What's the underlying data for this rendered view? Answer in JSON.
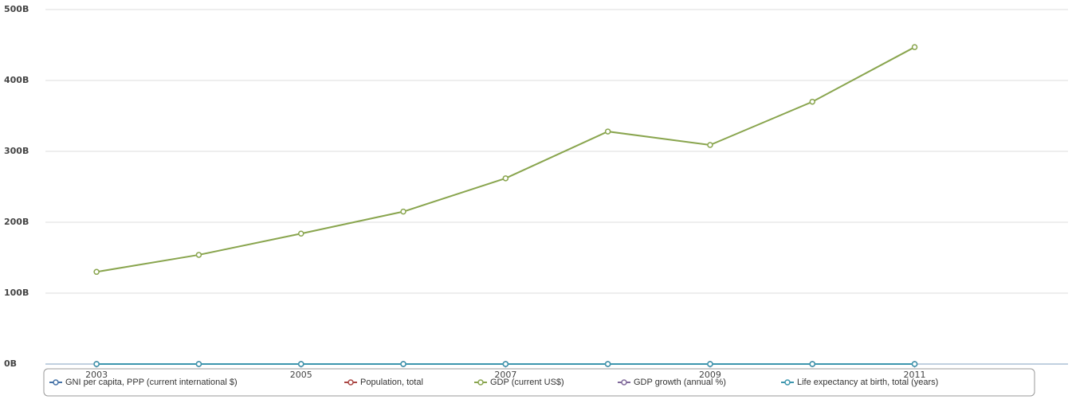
{
  "chart_data": {
    "type": "line",
    "x": [
      2003,
      2004,
      2005,
      2006,
      2007,
      2008,
      2009,
      2010,
      2011
    ],
    "xlim": [
      2002.5,
      2012.5
    ],
    "xticks": [
      2003,
      2005,
      2007,
      2009,
      2011
    ],
    "ylim": [
      0,
      500
    ],
    "yticks": [
      {
        "value": 0,
        "label": "0B"
      },
      {
        "value": 100,
        "label": "100B"
      },
      {
        "value": 200,
        "label": "200B"
      },
      {
        "value": 300,
        "label": "300B"
      },
      {
        "value": 400,
        "label": "400B"
      },
      {
        "value": 500,
        "label": "500B"
      }
    ],
    "grid": true,
    "legend": "bottom",
    "series": [
      {
        "name": "GNI per capita, PPP (current international $)",
        "color": "#4572a7",
        "values": [
          0,
          0,
          0,
          0,
          0,
          0,
          0,
          0,
          0
        ]
      },
      {
        "name": "Population, total",
        "color": "#aa4643",
        "values": [
          0.04,
          0.04,
          0.04,
          0.04,
          0.04,
          0.04,
          0.04,
          0.04,
          0.04
        ]
      },
      {
        "name": "GDP (current US$)",
        "color": "#89a54e",
        "values": [
          130,
          154,
          184,
          215,
          262,
          328,
          309,
          370,
          447
        ]
      },
      {
        "name": "GDP growth (annual %)",
        "color": "#80699b",
        "values": [
          0,
          0,
          0,
          0,
          0,
          0,
          0,
          0,
          0
        ]
      },
      {
        "name": "Life expectancy at birth, total (years)",
        "color": "#3d96ae",
        "values": [
          0,
          0,
          0,
          0,
          0,
          0,
          0,
          0,
          0
        ]
      }
    ]
  }
}
